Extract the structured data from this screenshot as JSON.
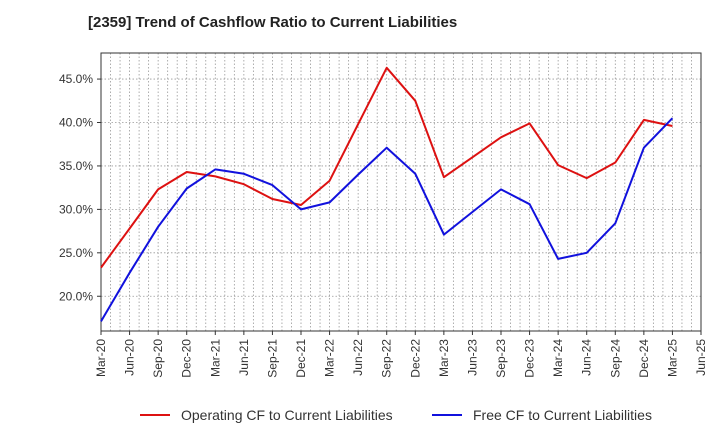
{
  "chart_data": {
    "type": "line",
    "title": "[2359]  Trend of Cashflow Ratio to Current Liabilities",
    "xlabel": "",
    "ylabel": "",
    "x": [
      "Mar-20",
      "Jun-20",
      "Sep-20",
      "Dec-20",
      "Mar-21",
      "Jun-21",
      "Sep-21",
      "Dec-21",
      "Mar-22",
      "Jun-22",
      "Sep-22",
      "Dec-22",
      "Mar-23",
      "Jun-23",
      "Sep-23",
      "Dec-23",
      "Mar-24",
      "Jun-24",
      "Sep-24",
      "Dec-24",
      "Mar-25",
      "Jun-25"
    ],
    "y_ticks": [
      20,
      25,
      30,
      35,
      40,
      45
    ],
    "y_tick_labels": [
      "20.0%",
      "25.0%",
      "30.0%",
      "35.0%",
      "40.0%",
      "45.0%"
    ],
    "ylim": [
      16,
      48
    ],
    "grid": true,
    "legend_position": "bottom",
    "series": [
      {
        "name": "Operating CF to Current Liabilities",
        "color": "#dd1111",
        "values": [
          23.3,
          27.8,
          32.3,
          34.3,
          33.8,
          32.9,
          31.2,
          30.5,
          33.3,
          39.8,
          46.3,
          42.5,
          33.7,
          36.0,
          38.3,
          39.9,
          35.1,
          33.6,
          35.4,
          40.3,
          39.6,
          null
        ]
      },
      {
        "name": "Free CF to Current Liabilities",
        "color": "#1111dd",
        "values": [
          17.1,
          22.7,
          28.0,
          32.4,
          34.6,
          34.1,
          32.8,
          30.0,
          30.8,
          34.0,
          37.1,
          34.1,
          27.1,
          29.7,
          32.3,
          30.6,
          24.3,
          25.0,
          28.4,
          37.1,
          40.5,
          null
        ]
      }
    ]
  }
}
